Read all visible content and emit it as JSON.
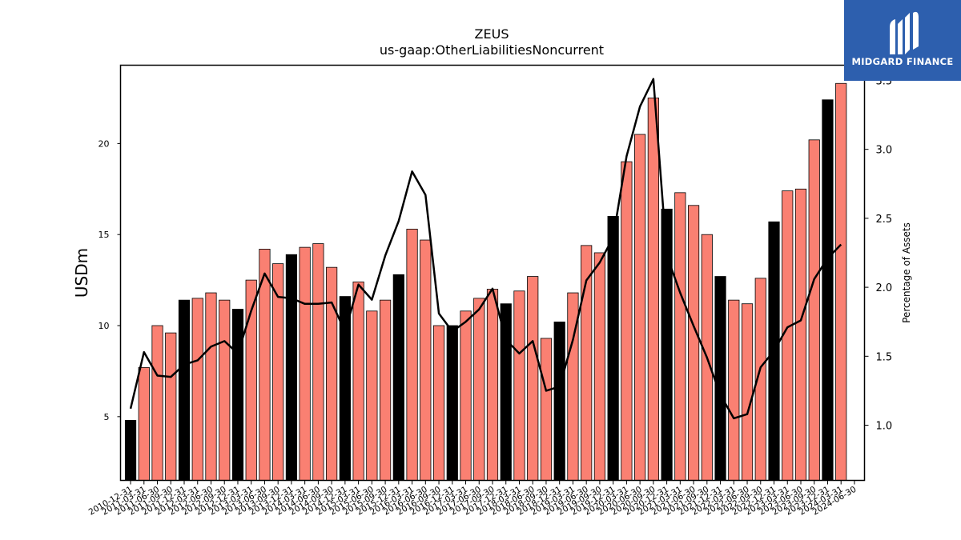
{
  "chart_data": {
    "type": "bar",
    "title": "ZEUS",
    "subtitle": "us-gaap:OtherLiabilitiesNoncurrent",
    "ylabel": "USDm",
    "y2label": "Percentage of Assets",
    "ylim": [
      1.5,
      24.3
    ],
    "y2lim": [
      0.6,
      3.61
    ],
    "yticks": [
      5,
      10,
      15,
      20
    ],
    "y2ticks": [
      1.0,
      1.5,
      2.0,
      2.5,
      3.0,
      3.5
    ],
    "ytick_labels": [
      "5",
      "10",
      "15",
      "20"
    ],
    "y2tick_labels": [
      "1.0",
      "1.5",
      "2.0",
      "2.5",
      "3.0",
      "3.5"
    ],
    "categories": [
      "2010-12-31",
      "2011-03-31",
      "2011-06-30",
      "2011-09-30",
      "2011-12-31",
      "2012-03-31",
      "2012-06-30",
      "2012-09-30",
      "2012-12-31",
      "2013-03-31",
      "2013-06-30",
      "2013-09-30",
      "2013-12-31",
      "2014-03-31",
      "2014-06-30",
      "2014-09-30",
      "2014-12-31",
      "2015-03-31",
      "2015-06-30",
      "2015-09-30",
      "2015-12-31",
      "2016-03-31",
      "2016-06-30",
      "2016-09-30",
      "2016-12-31",
      "2017-03-31",
      "2017-06-30",
      "2017-09-30",
      "2017-12-31",
      "2018-03-31",
      "2018-06-30",
      "2018-09-30",
      "2018-12-31",
      "2019-03-31",
      "2019-06-30",
      "2019-09-30",
      "2019-12-31",
      "2020-03-31",
      "2020-06-30",
      "2020-09-30",
      "2020-12-31",
      "2021-03-31",
      "2021-06-30",
      "2021-09-30",
      "2021-12-31",
      "2022-03-31",
      "2022-06-30",
      "2022-09-30",
      "2022-12-31",
      "2023-03-31",
      "2023-06-30",
      "2023-09-30",
      "2023-12-31",
      "2024-03-31",
      "2024-06-30"
    ],
    "series": [
      {
        "kind": "bar",
        "values": [
          4.8,
          7.7,
          10.0,
          9.6,
          11.4,
          11.5,
          11.8,
          11.4,
          10.9,
          12.5,
          14.2,
          13.4,
          13.9,
          14.3,
          14.5,
          13.2,
          11.6,
          12.4,
          10.8,
          11.4,
          12.8,
          15.3,
          14.7,
          10.0,
          10.0,
          10.8,
          11.5,
          12.0,
          11.2,
          11.9,
          12.7,
          9.3,
          10.2,
          11.8,
          14.4,
          14.0,
          16.0,
          19.0,
          20.5,
          22.5,
          16.4,
          17.3,
          16.6,
          15.0,
          12.7,
          11.4,
          11.2,
          12.6,
          15.7,
          17.4,
          17.5,
          20.2,
          22.4,
          23.3,
          null
        ]
      },
      {
        "kind": "line",
        "axis": "right",
        "values": [
          1.12,
          1.53,
          1.36,
          1.35,
          1.44,
          1.47,
          1.57,
          1.61,
          1.52,
          1.83,
          2.1,
          1.93,
          1.92,
          1.88,
          1.88,
          1.89,
          1.68,
          2.02,
          1.91,
          2.23,
          2.48,
          2.84,
          2.67,
          1.81,
          1.68,
          1.75,
          1.84,
          1.99,
          1.62,
          1.52,
          1.61,
          1.25,
          1.28,
          1.62,
          2.05,
          2.18,
          2.36,
          2.95,
          3.31,
          3.51,
          2.23,
          1.96,
          1.72,
          1.49,
          1.22,
          1.05,
          1.08,
          1.42,
          1.54,
          1.71,
          1.76,
          2.06,
          2.21,
          2.31,
          null
        ]
      }
    ],
    "annual_categories": [
      "2010-12-31",
      "2011-12-31",
      "2012-12-31",
      "2013-12-31",
      "2014-12-31",
      "2015-12-31",
      "2016-12-31",
      "2017-12-31",
      "2018-12-31",
      "2019-12-31",
      "2020-12-31",
      "2021-12-31",
      "2022-12-31",
      "2023-12-31"
    ],
    "colors": {
      "bar": "#fa8072",
      "annual_bar": "#000000",
      "line": "#000000"
    },
    "grid": false,
    "legend": "none"
  },
  "logo": {
    "text": "MIDGARD FINANCE",
    "icon": "midgard-logo-icon"
  }
}
